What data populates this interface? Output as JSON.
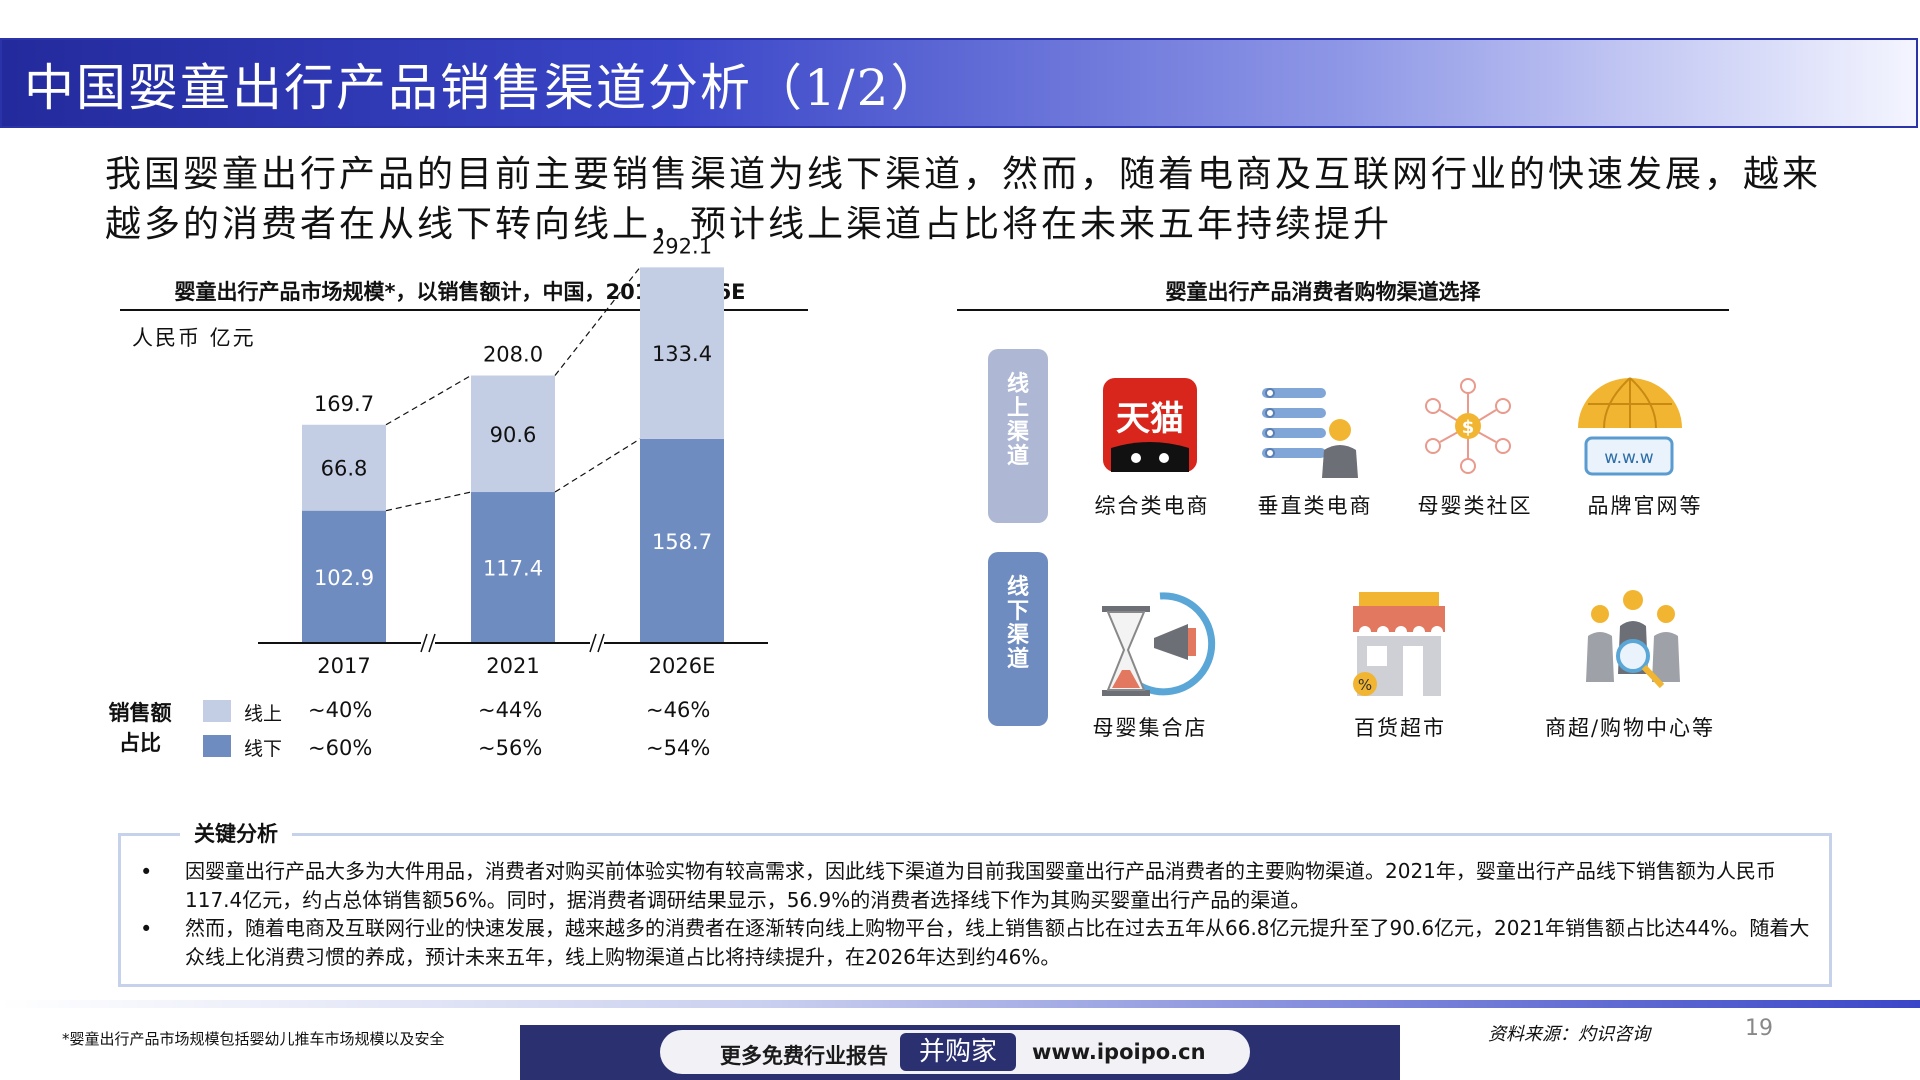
{
  "title": "中国婴童出行产品销售渠道分析（1/2）",
  "headline": "我国婴童出行产品的目前主要销售渠道为线下渠道，然而，随着电商及互联网行业的快速发展，越来越多的消费者在从线下转向线上，预计线上渠道占比将在未来五年持续提升",
  "left_section": {
    "title": "婴童出行产品市场规模*，以销售额计，中国，2017-2026E",
    "unit": "人民币 亿元"
  },
  "chart_data": {
    "type": "bar",
    "stacked": true,
    "categories": [
      "2017",
      "2021",
      "2026E"
    ],
    "series": [
      {
        "name": "线下",
        "values": [
          102.9,
          117.4,
          158.7
        ],
        "color": "#6f8cc0"
      },
      {
        "name": "线上",
        "values": [
          66.8,
          90.6,
          133.4
        ],
        "color": "#c3cde4"
      }
    ],
    "totals": [
      "169.7",
      "208.0",
      "292.1"
    ],
    "value_labels": {
      "offline": [
        "102.9",
        "117.4",
        "158.7"
      ],
      "online": [
        "66.8",
        "90.6",
        "133.4"
      ]
    },
    "ylim": [
      0,
      300
    ],
    "grid": false,
    "axis_breaks": true
  },
  "share": {
    "label_line1": "销售额",
    "label_line2": "占比",
    "online_legend": "线上",
    "offline_legend": "线下",
    "online_values": [
      "~40%",
      "~44%",
      "~46%"
    ],
    "offline_values": [
      "~60%",
      "~56%",
      "~54%"
    ],
    "online_color": "#c3cde4",
    "offline_color": "#6f8cc0"
  },
  "right_section": {
    "title": "婴童出行产品消费者购物渠道选择",
    "online_pill": [
      "线",
      "上",
      "渠",
      "道"
    ],
    "offline_pill": [
      "线",
      "下",
      "渠",
      "道"
    ],
    "online_items": [
      {
        "label": "综合类电商",
        "icon": "tmall-logo-icon",
        "logo_text": "天猫"
      },
      {
        "label": "垂直类电商",
        "icon": "vertical-ecommerce-icon"
      },
      {
        "label": "母婴类社区",
        "icon": "community-network-icon"
      },
      {
        "label": "品牌官网等",
        "icon": "globe-www-icon",
        "logo_text": "w.w.w"
      }
    ],
    "offline_items": [
      {
        "label": "母婴集合店",
        "icon": "hourglass-megaphone-icon"
      },
      {
        "label": "百货超市",
        "icon": "store-icon"
      },
      {
        "label": "商超/购物中心等",
        "icon": "people-network-icon"
      }
    ]
  },
  "analysis": {
    "title": "关键分析",
    "bullet": "•",
    "points": [
      "因婴童出行产品大多为大件用品，消费者对购买前体验实物有较高需求，因此线下渠道为目前我国婴童出行产品消费者的主要购物渠道。2021年，婴童出行产品线下销售额为人民币117.4亿元，约占总体销售额56%。同时，据消费者调研结果显示，56.9%的消费者选择线下作为其购买婴童出行产品的渠道。",
      "然而，随着电商及互联网行业的快速发展，越来越多的消费者在逐渐转向线上购物平台，线上销售额占比在过去五年从66.8亿元提升至了90.6亿元，2021年销售额占比达44%。随着大众线上化消费习惯的养成，预计未来五年，线上购物渠道占比将持续提升，在2026年达到约46%。"
    ]
  },
  "footer": {
    "footnote": "*婴童出行产品市场规模包括婴幼儿推车市场规模以及安全",
    "banner_left": "更多免费行业报告",
    "banner_brand": "并购家",
    "banner_url": "www.ipoipo.cn",
    "source": "资料来源：灼识咨询",
    "page": "19"
  },
  "colors": {
    "title_bar": "#2b33a8",
    "analysis_border": "#c6d1ec",
    "pill_online": "#aeb8d4",
    "pill_offline": "#6f8cc0",
    "tmall_red": "#d9261c"
  }
}
